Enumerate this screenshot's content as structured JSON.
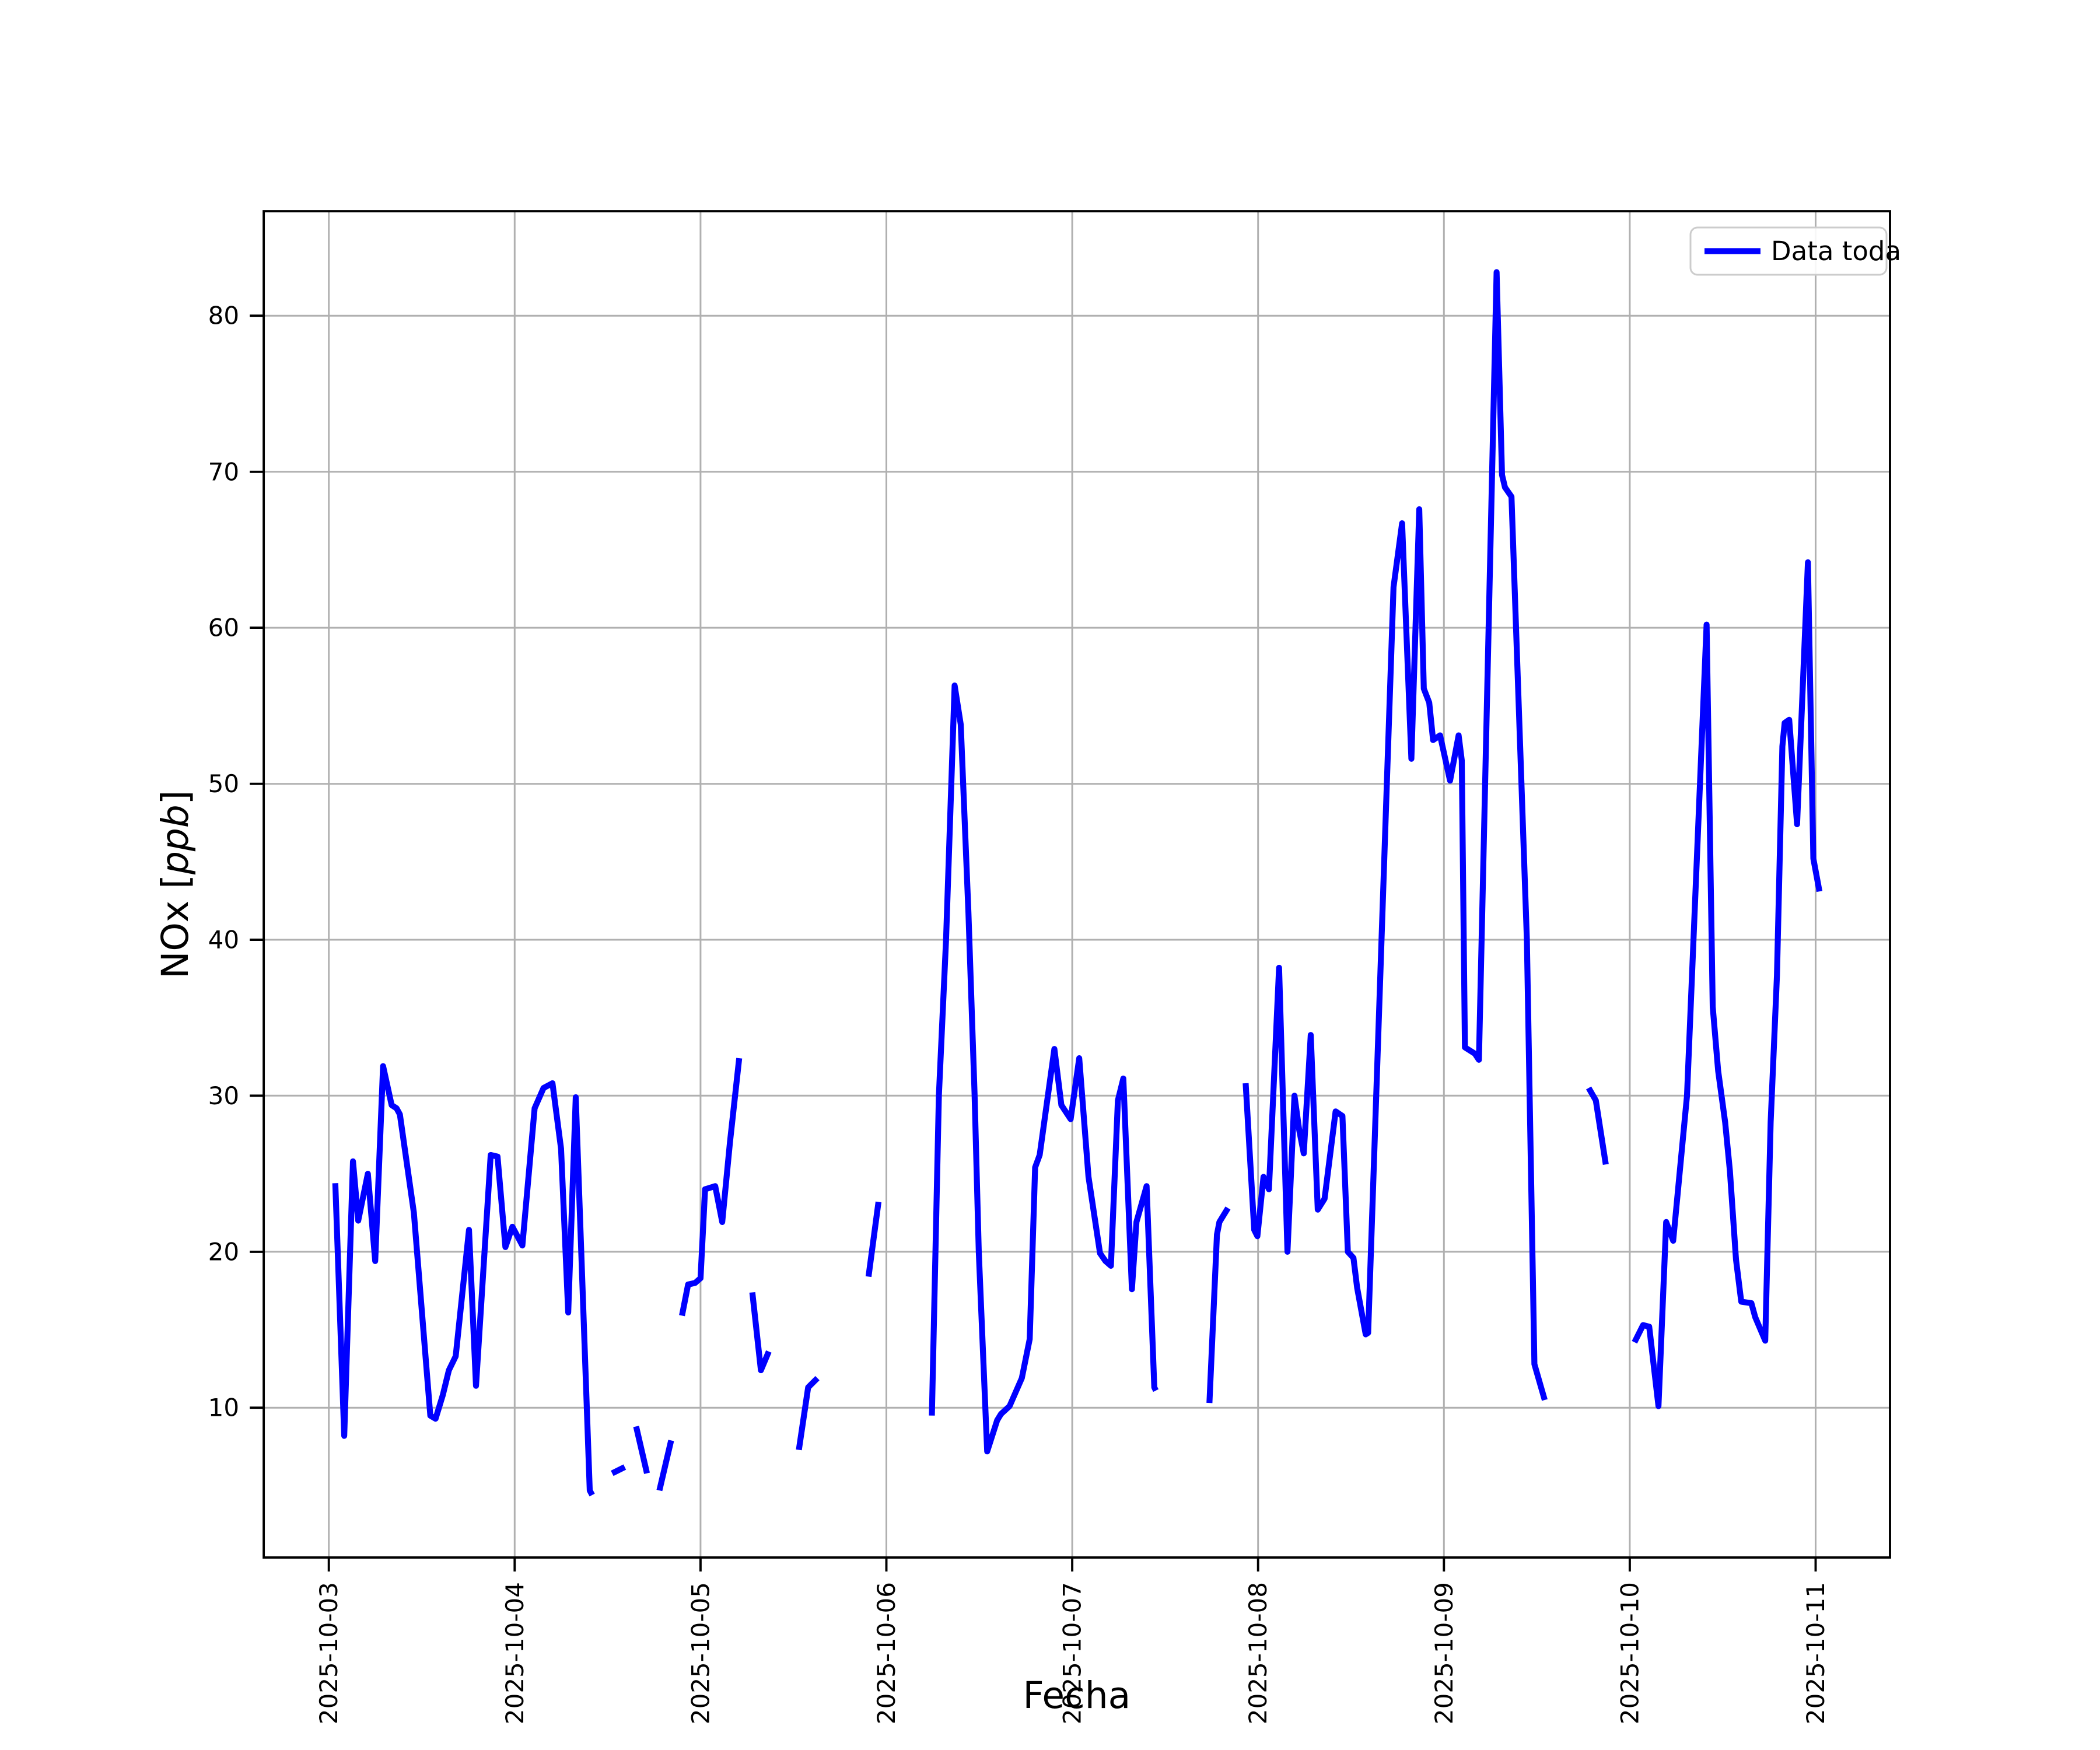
{
  "figure": {
    "background": "#ffffff"
  },
  "chart_data": {
    "type": "line",
    "title": "",
    "xlabel": "Fecha",
    "ylabel_parts": {
      "pre": "NOx [",
      "italic": "ppb",
      "post": "]"
    },
    "legend": [
      {
        "label": "Data toda",
        "color": "#0000ff"
      }
    ],
    "legend_position": "upper right",
    "grid": true,
    "grid_color": "#b0b0b0",
    "axes_edge_color": "#000000",
    "line_color": "#0000ff",
    "x_unit": "days since 2025-10-03 00:00",
    "xlim": [
      -0.35,
      8.4
    ],
    "ylim": [
      0.4,
      86.7
    ],
    "x_ticks": [
      {
        "day": 0,
        "label": "2025-10-03"
      },
      {
        "day": 1,
        "label": "2025-10-04"
      },
      {
        "day": 2,
        "label": "2025-10-05"
      },
      {
        "day": 3,
        "label": "2025-10-06"
      },
      {
        "day": 4,
        "label": "2025-10-07"
      },
      {
        "day": 5,
        "label": "2025-10-08"
      },
      {
        "day": 6,
        "label": "2025-10-09"
      },
      {
        "day": 7,
        "label": "2025-10-10"
      },
      {
        "day": 8,
        "label": "2025-10-11"
      }
    ],
    "y_ticks": [
      10,
      20,
      30,
      40,
      50,
      60,
      70,
      80
    ],
    "series": [
      {
        "name": "Data toda",
        "segments": [
          [
            [
              0.035,
              24.4
            ],
            [
              0.083,
              8.2
            ],
            [
              0.13,
              25.8
            ],
            [
              0.158,
              22.0
            ],
            [
              0.21,
              25.0
            ],
            [
              0.25,
              19.4
            ],
            [
              0.292,
              31.9
            ],
            [
              0.338,
              29.4
            ],
            [
              0.365,
              29.2
            ],
            [
              0.383,
              28.8
            ],
            [
              0.458,
              22.5
            ],
            [
              0.546,
              9.5
            ],
            [
              0.575,
              9.3
            ],
            [
              0.613,
              10.8
            ],
            [
              0.646,
              12.4
            ],
            [
              0.683,
              13.3
            ],
            [
              0.754,
              21.4
            ],
            [
              0.792,
              11.4
            ],
            [
              0.871,
              26.2
            ],
            [
              0.908,
              26.1
            ],
            [
              0.95,
              20.3
            ],
            [
              0.988,
              21.6
            ],
            [
              1.042,
              20.4
            ],
            [
              1.108,
              29.2
            ],
            [
              1.156,
              30.5
            ],
            [
              1.204,
              30.8
            ],
            [
              1.25,
              26.6
            ],
            [
              1.288,
              16.1
            ],
            [
              1.329,
              29.9
            ],
            [
              1.404,
              4.7
            ],
            [
              1.417,
              4.4
            ]
          ],
          [
            [
              1.525,
              5.8
            ],
            [
              1.592,
              6.2
            ]
          ],
          [
            [
              1.654,
              8.8
            ],
            [
              1.712,
              5.8
            ]
          ],
          [
            [
              1.779,
              4.7
            ],
            [
              1.842,
              7.9
            ]
          ],
          [
            [
              1.9,
              15.9
            ],
            [
              1.933,
              17.9
            ],
            [
              1.971,
              18.0
            ],
            [
              2.0,
              18.3
            ],
            [
              2.025,
              24.0
            ],
            [
              2.079,
              24.2
            ],
            [
              2.117,
              21.9
            ],
            [
              2.158,
              27.0
            ],
            [
              2.208,
              32.4
            ]
          ],
          [
            [
              2.279,
              17.4
            ],
            [
              2.325,
              12.4
            ],
            [
              2.367,
              13.6
            ]
          ],
          [
            [
              2.529,
              7.3
            ],
            [
              2.579,
              11.3
            ],
            [
              2.629,
              11.9
            ]
          ],
          [
            [
              2.904,
              18.4
            ],
            [
              2.958,
              23.2
            ]
          ],
          [
            [
              3.245,
              9.5
            ],
            [
              3.283,
              30.0
            ],
            [
              3.321,
              40.0
            ],
            [
              3.367,
              56.3
            ],
            [
              3.4,
              53.8
            ],
            [
              3.442,
              41.7
            ],
            [
              3.475,
              30.1
            ],
            [
              3.497,
              20.0
            ],
            [
              3.542,
              7.2
            ],
            [
              3.596,
              9.2
            ],
            [
              3.617,
              9.6
            ],
            [
              3.663,
              10.1
            ],
            [
              3.729,
              11.9
            ],
            [
              3.771,
              14.4
            ],
            [
              3.8,
              25.4
            ],
            [
              3.825,
              26.2
            ],
            [
              3.904,
              33.0
            ],
            [
              3.942,
              29.4
            ],
            [
              3.992,
              28.5
            ],
            [
              4.038,
              32.4
            ],
            [
              4.088,
              24.8
            ],
            [
              4.15,
              19.9
            ],
            [
              4.179,
              19.4
            ],
            [
              4.208,
              19.1
            ],
            [
              4.246,
              29.7
            ],
            [
              4.275,
              31.1
            ],
            [
              4.321,
              17.6
            ],
            [
              4.346,
              21.9
            ],
            [
              4.4,
              24.2
            ],
            [
              4.442,
              11.3
            ],
            [
              4.45,
              11.1
            ]
          ],
          [
            [
              4.738,
              10.3
            ],
            [
              4.779,
              21.1
            ],
            [
              4.792,
              21.9
            ],
            [
              4.838,
              22.8
            ]
          ],
          [
            [
              4.933,
              30.8
            ],
            [
              4.979,
              21.4
            ],
            [
              4.996,
              21.0
            ],
            [
              5.029,
              24.8
            ],
            [
              5.058,
              24.0
            ],
            [
              5.113,
              38.2
            ],
            [
              5.158,
              20.0
            ],
            [
              5.196,
              30.0
            ],
            [
              5.221,
              27.8
            ],
            [
              5.246,
              26.3
            ],
            [
              5.283,
              33.9
            ],
            [
              5.321,
              22.7
            ],
            [
              5.358,
              23.4
            ],
            [
              5.417,
              29.0
            ],
            [
              5.454,
              28.7
            ],
            [
              5.483,
              20.0
            ],
            [
              5.513,
              19.6
            ],
            [
              5.533,
              17.7
            ],
            [
              5.579,
              14.7
            ],
            [
              5.592,
              14.8
            ],
            [
              5.729,
              62.6
            ],
            [
              5.775,
              66.7
            ],
            [
              5.825,
              51.6
            ],
            [
              5.867,
              67.6
            ],
            [
              5.892,
              56.1
            ],
            [
              5.921,
              55.2
            ],
            [
              5.942,
              52.8
            ],
            [
              5.979,
              53.1
            ],
            [
              6.033,
              50.2
            ],
            [
              6.079,
              53.1
            ],
            [
              6.096,
              51.5
            ],
            [
              6.113,
              33.1
            ],
            [
              6.167,
              32.7
            ],
            [
              6.188,
              32.3
            ],
            [
              6.283,
              82.8
            ],
            [
              6.313,
              69.8
            ],
            [
              6.329,
              69.0
            ],
            [
              6.363,
              68.4
            ],
            [
              6.446,
              40.0
            ],
            [
              6.487,
              12.8
            ],
            [
              6.496,
              12.4
            ],
            [
              6.542,
              10.5
            ]
          ],
          [
            [
              6.779,
              30.5
            ],
            [
              6.817,
              29.7
            ],
            [
              6.871,
              25.6
            ]
          ],
          [
            [
              7.025,
              14.2
            ],
            [
              7.071,
              15.3
            ],
            [
              7.104,
              15.2
            ],
            [
              7.154,
              10.1
            ],
            [
              7.196,
              21.9
            ],
            [
              7.233,
              20.7
            ],
            [
              7.308,
              30.0
            ],
            [
              7.413,
              60.2
            ],
            [
              7.446,
              35.7
            ],
            [
              7.475,
              31.6
            ],
            [
              7.513,
              28.3
            ],
            [
              7.538,
              25.2
            ],
            [
              7.571,
              19.5
            ],
            [
              7.6,
              16.8
            ],
            [
              7.654,
              16.7
            ],
            [
              7.675,
              15.8
            ],
            [
              7.729,
              14.3
            ],
            [
              7.758,
              28.3
            ],
            [
              7.792,
              37.7
            ],
            [
              7.821,
              52.4
            ],
            [
              7.833,
              53.9
            ],
            [
              7.858,
              54.1
            ],
            [
              7.9,
              47.4
            ],
            [
              7.958,
              64.2
            ],
            [
              7.988,
              45.2
            ],
            [
              8.021,
              43.1
            ]
          ]
        ]
      }
    ]
  }
}
